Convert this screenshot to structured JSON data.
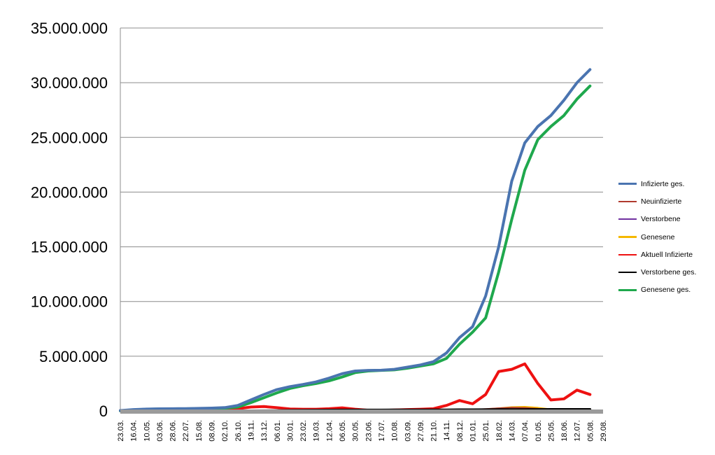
{
  "chart_data": {
    "type": "line",
    "title": "",
    "xlabel": "",
    "ylabel": "",
    "ylim": [
      0,
      35000000
    ],
    "yticks": [
      0,
      5000000,
      10000000,
      15000000,
      20000000,
      25000000,
      30000000,
      35000000
    ],
    "ytick_labels": [
      "0",
      "5.000.000",
      "10.000.000",
      "15.000.000",
      "20.000.000",
      "25.000.000",
      "30.000.000",
      "35.000.000"
    ],
    "categories": [
      "23.03.",
      "16.04.",
      "10.05.",
      "03.06.",
      "28.06.",
      "22.07.",
      "15.08.",
      "08.09.",
      "02.10.",
      "26.10.",
      "19.11.",
      "13.12.",
      "06.01.",
      "30.01.",
      "23.02.",
      "19.03.",
      "12.04.",
      "06.05.",
      "30.05.",
      "23.06.",
      "17.07.",
      "10.08.",
      "03.09.",
      "27.09.",
      "21.10.",
      "14.11.",
      "08.12.",
      "01.01.",
      "25.01.",
      "18.02.",
      "14.03.",
      "07.04.",
      "01.05.",
      "25.05.",
      "18.06.",
      "12.07.",
      "05.08.",
      "29.08."
    ],
    "grid": true,
    "legend_position": "right",
    "series": [
      {
        "name": "Infizierte ges.",
        "color": "#4a74b0",
        "width": 4,
        "values": [
          30000,
          120000,
          170000,
          190000,
          200000,
          210000,
          230000,
          260000,
          300000,
          500000,
          1000000,
          1500000,
          1950000,
          2220000,
          2420000,
          2650000,
          3000000,
          3400000,
          3650000,
          3700000,
          3720000,
          3800000,
          4000000,
          4200000,
          4500000,
          5300000,
          6700000,
          7700000,
          10500000,
          15000000,
          21000000,
          24500000,
          26000000,
          27000000,
          28400000,
          30000000,
          31200000,
          null
        ]
      },
      {
        "name": "Neuinfizierte",
        "color": "#b03a2e",
        "width": 2,
        "values": [
          3000,
          3000,
          1500,
          1500,
          1500,
          1500,
          3000,
          4000,
          6000,
          20000,
          45000,
          40000,
          30000,
          25000,
          20000,
          15000,
          25000,
          30000,
          15000,
          8000,
          5000,
          10000,
          20000,
          25000,
          40000,
          100000,
          150000,
          120000,
          180000,
          250000,
          300000,
          280000,
          200000,
          120000,
          100000,
          140000,
          120000,
          null
        ]
      },
      {
        "name": "Verstorbene",
        "color": "#7030a0",
        "width": 2,
        "values": [
          500,
          1000,
          500,
          200,
          200,
          200,
          200,
          300,
          400,
          1000,
          2000,
          2500,
          2500,
          2000,
          1500,
          1000,
          1500,
          2000,
          1000,
          500,
          300,
          300,
          500,
          1000,
          1500,
          3000,
          5000,
          5000,
          6000,
          8000,
          9000,
          9000,
          7000,
          4000,
          3000,
          3000,
          3000,
          null
        ]
      },
      {
        "name": "Genesene",
        "color": "#f5b800",
        "width": 2,
        "values": [
          2000,
          3000,
          1500,
          1500,
          1500,
          1500,
          2000,
          3000,
          4000,
          10000,
          30000,
          40000,
          35000,
          30000,
          20000,
          15000,
          20000,
          30000,
          20000,
          8000,
          5000,
          8000,
          15000,
          20000,
          30000,
          80000,
          120000,
          110000,
          150000,
          250000,
          350000,
          380000,
          300000,
          150000,
          120000,
          130000,
          140000,
          null
        ]
      },
      {
        "name": "Aktuell Infizierte",
        "color": "#ee1111",
        "width": 4,
        "values": [
          20000,
          60000,
          40000,
          25000,
          25000,
          30000,
          40000,
          70000,
          100000,
          200000,
          350000,
          400000,
          300000,
          180000,
          150000,
          150000,
          200000,
          280000,
          150000,
          60000,
          40000,
          80000,
          120000,
          150000,
          200000,
          500000,
          950000,
          650000,
          1500000,
          3600000,
          3800000,
          4300000,
          2500000,
          1000000,
          1100000,
          1900000,
          1500000,
          null
        ]
      },
      {
        "name": "Verstorbene ges.",
        "color": "#000000",
        "width": 3.5,
        "values": [
          1000,
          6000,
          8000,
          9000,
          9000,
          9200,
          9300,
          9400,
          9600,
          11000,
          16000,
          22000,
          35000,
          55000,
          68000,
          74000,
          79000,
          85000,
          88000,
          90000,
          91000,
          92000,
          93000,
          94000,
          96000,
          100000,
          108000,
          115000,
          120000,
          124000,
          128000,
          132000,
          137000,
          141000,
          143000,
          144000,
          145000,
          null
        ]
      },
      {
        "name": "Genesene ges.",
        "color": "#1fa84d",
        "width": 4,
        "values": [
          10000,
          90000,
          150000,
          175000,
          185000,
          195000,
          205000,
          225000,
          250000,
          350000,
          750000,
          1200000,
          1650000,
          2050000,
          2300000,
          2500000,
          2750000,
          3100000,
          3500000,
          3650000,
          3700000,
          3750000,
          3900000,
          4100000,
          4300000,
          4800000,
          6100000,
          7200000,
          8500000,
          12700000,
          17500000,
          22000000,
          24800000,
          26000000,
          27000000,
          28500000,
          29700000,
          null
        ]
      }
    ]
  }
}
